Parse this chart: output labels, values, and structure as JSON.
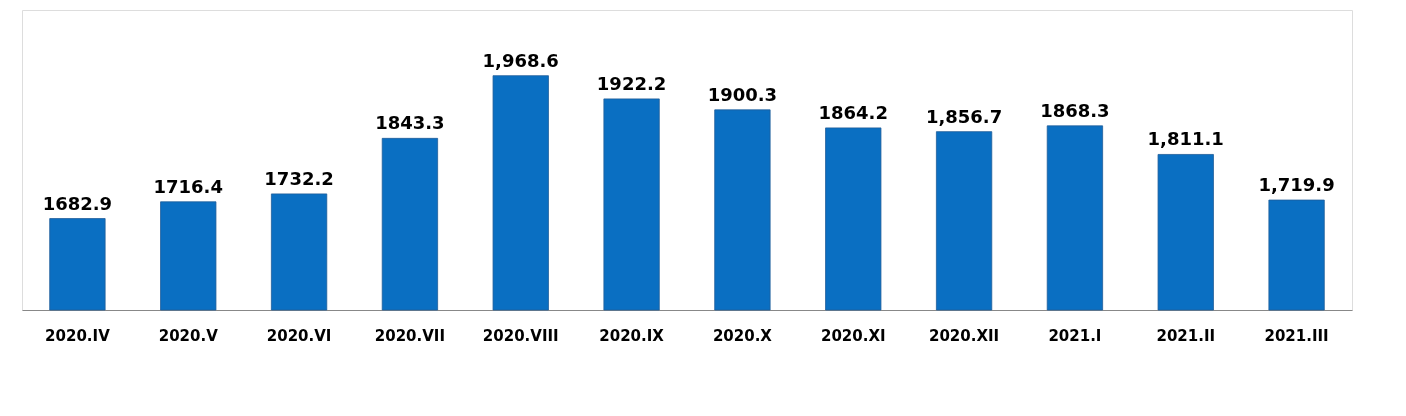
{
  "chart_data": {
    "type": "bar",
    "categories": [
      "2020.IV",
      "2020.V",
      "2020.VI",
      "2020.VII",
      "2020.VIII",
      "2020.IX",
      "2020.X",
      "2020.XI",
      "2020.XII",
      "2021.I",
      "2021.II",
      "2021.III"
    ],
    "values": [
      1682.9,
      1716.4,
      1732.2,
      1843.3,
      1968.6,
      1922.2,
      1900.3,
      1864.2,
      1856.7,
      1868.3,
      1811.1,
      1719.9
    ],
    "value_labels": [
      "1682.9",
      "1716.4",
      "1732.2",
      "1843.3",
      "1,968.6",
      "1922.2",
      "1900.3",
      "1864.2",
      "1,856.7",
      "1868.3",
      "1,811.1",
      "1,719.9"
    ],
    "color": "#0a6fc2",
    "ylim": [
      1500,
      2100
    ],
    "tick_labels": "x",
    "grid": false
  }
}
